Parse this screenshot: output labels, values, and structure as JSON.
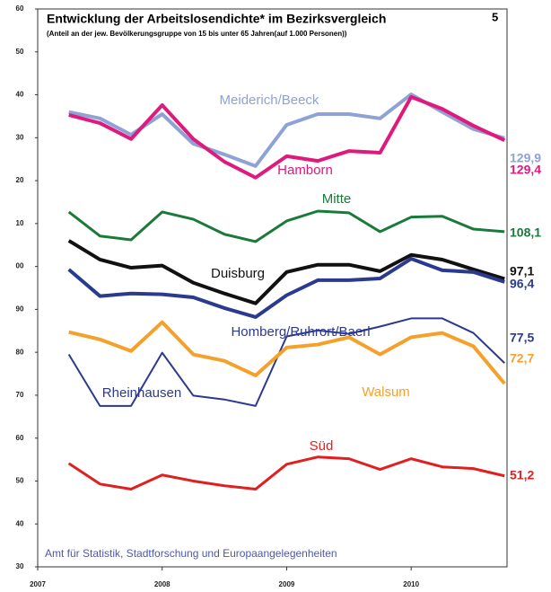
{
  "chart_data": {
    "type": "line",
    "title": "Entwicklung der Arbeitslosendichte* im Bezirksvergleich",
    "subtitle": "(Anteil an der jew. Bevölkerungsgruppe von 15 bis unter 65 Jahren(auf 1.000 Personen))",
    "page_number": "5",
    "source": "Amt für Statistik, Stadtforschung und Europaangelegenheiten",
    "x": [
      2007.25,
      2007.5,
      2007.75,
      2008.0,
      2008.25,
      2008.5,
      2008.75,
      2009.0,
      2009.25,
      2009.5,
      2009.75,
      2010.0,
      2010.25,
      2010.5,
      2010.75
    ],
    "xlim": [
      2007,
      2010.77
    ],
    "xticks": [
      2007,
      2008,
      2009,
      2010
    ],
    "ylim": [
      30,
      160
    ],
    "yticks": [
      30,
      40,
      50,
      60,
      70,
      80,
      90,
      {
        "value": 100,
        "label": "00"
      },
      {
        "value": 110,
        "label": "10"
      },
      {
        "value": 120,
        "label": "20"
      },
      {
        "value": 130,
        "label": "30"
      },
      {
        "value": 140,
        "label": "40"
      },
      {
        "value": 150,
        "label": "50"
      },
      {
        "value": 160,
        "label": "60"
      }
    ],
    "series": [
      {
        "name": "Meiderich/Beeck",
        "color": "#8ea2d6",
        "values": [
          136.0,
          134.5,
          130.7,
          135.5,
          128.6,
          126.1,
          123.4,
          133.0,
          135.5,
          135.5,
          134.5,
          140.1,
          136.0,
          132.0,
          129.9
        ],
        "value_labels": [
          null,
          null,
          null,
          null,
          null,
          null,
          null,
          null,
          null,
          null,
          null,
          null,
          null,
          null,
          "129,9"
        ]
      },
      {
        "name": "Hamborn",
        "color": "#e0197d",
        "values": [
          135.3,
          133.4,
          129.7,
          137.6,
          129.7,
          124.4,
          120.7,
          125.7,
          124.6,
          126.9,
          126.5,
          139.5,
          136.7,
          132.8,
          129.4
        ],
        "value_labels": [
          null,
          null,
          null,
          null,
          null,
          null,
          null,
          null,
          null,
          null,
          null,
          null,
          null,
          null,
          "129,4"
        ]
      },
      {
        "name": "Mitte",
        "color": "#1a7a3a",
        "values": [
          112.7,
          107.1,
          106.2,
          112.7,
          111.0,
          107.5,
          105.8,
          110.6,
          112.9,
          112.5,
          108.1,
          111.5,
          111.7,
          108.7,
          108.1
        ],
        "value_labels": [
          null,
          null,
          null,
          null,
          null,
          null,
          null,
          null,
          null,
          null,
          null,
          null,
          null,
          null,
          "108,1"
        ]
      },
      {
        "name": "Duisburg",
        "color": "#111111",
        "values": [
          106.0,
          101.6,
          99.7,
          100.2,
          96.2,
          93.7,
          91.4,
          98.7,
          100.4,
          100.4,
          98.9,
          102.7,
          101.6,
          99.3,
          97.1
        ],
        "value_labels": [
          null,
          null,
          null,
          null,
          null,
          null,
          null,
          null,
          null,
          null,
          null,
          null,
          null,
          null,
          "97,1"
        ]
      },
      {
        "name": "Homberg/Ruhrort/Baerl",
        "color": "#2b3a8f",
        "values": [
          99.3,
          93.1,
          93.7,
          93.5,
          92.8,
          90.3,
          88.2,
          93.3,
          96.8,
          96.8,
          97.2,
          101.8,
          99.1,
          98.7,
          96.4
        ],
        "value_labels": [
          null,
          null,
          null,
          null,
          null,
          null,
          null,
          null,
          null,
          null,
          null,
          null,
          null,
          null,
          "96,4"
        ]
      },
      {
        "name": "Rheinhausen",
        "color": "#2b3a8f",
        "values": [
          79.5,
          67.5,
          67.5,
          79.9,
          69.9,
          69.0,
          67.5,
          83.7,
          85.1,
          84.3,
          86.0,
          87.9,
          87.9,
          84.5,
          77.5
        ],
        "value_labels": [
          null,
          null,
          null,
          null,
          null,
          null,
          null,
          null,
          null,
          null,
          null,
          null,
          null,
          null,
          "77,5"
        ]
      },
      {
        "name": "Walsum",
        "color": "#f5a02a",
        "values": [
          84.7,
          83.0,
          80.3,
          87.0,
          79.5,
          78.0,
          74.6,
          81.1,
          81.8,
          83.5,
          79.5,
          83.5,
          84.5,
          81.4,
          72.7
        ],
        "value_labels": [
          null,
          null,
          null,
          null,
          null,
          null,
          null,
          null,
          null,
          null,
          null,
          null,
          null,
          null,
          "72,7"
        ]
      },
      {
        "name": "Süd",
        "color": "#e02020",
        "values": [
          54.1,
          49.3,
          48.1,
          51.4,
          50.0,
          48.9,
          48.1,
          53.9,
          55.6,
          55.2,
          52.7,
          55.2,
          53.3,
          52.9,
          51.2
        ],
        "value_labels": [
          null,
          null,
          null,
          null,
          null,
          null,
          null,
          null,
          null,
          null,
          null,
          null,
          null,
          null,
          "51,2"
        ]
      }
    ]
  }
}
